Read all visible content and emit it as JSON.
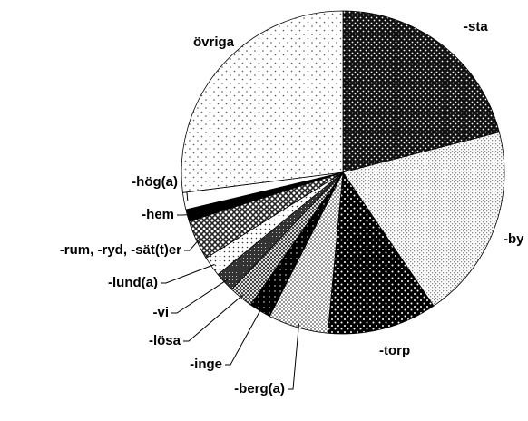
{
  "chart_data": {
    "type": "pie",
    "categories": [
      "-sta",
      "-by",
      "-torp",
      "-berg(a)",
      "-inge",
      "-lösa",
      "-vi",
      "-lund(a)",
      "-rum, -ryd, -sät(t)er",
      "-hem",
      "-hög(a)",
      "övriga"
    ],
    "values": [
      21,
      19.5,
      11,
      6,
      2.2,
      2.4,
      2,
      2,
      4,
      1.2,
      1.7,
      27
    ]
  }
}
